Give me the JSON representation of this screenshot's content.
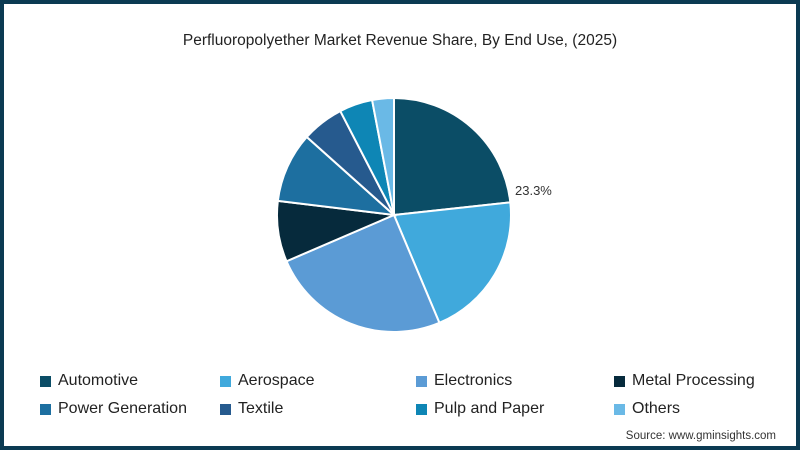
{
  "chart_data": {
    "type": "pie",
    "title": "Perfluoropolyether Market Revenue Share, By End Use, (2025)",
    "categories": [
      "Automotive",
      "Aerospace",
      "Electronics",
      "Metal Processing",
      "Power Generation",
      "Textile",
      "Pulp and Paper",
      "Others"
    ],
    "values": [
      23.3,
      20.4,
      24.9,
      8.4,
      9.7,
      5.8,
      4.6,
      3.0
    ],
    "colors": [
      "#0b4d66",
      "#40a9dc",
      "#5b9bd5",
      "#062a3c",
      "#1d6fa0",
      "#265a8e",
      "#0e86b5",
      "#6ab9e6"
    ],
    "labeled_slices": [
      {
        "category": "Automotive",
        "label": "23.3%"
      }
    ],
    "start_angle": 0,
    "direction": "clockwise",
    "legend_position": "bottom"
  },
  "title": "Perfluoropolyether Market Revenue Share, By End Use, (2025)",
  "data_label": "23.3%",
  "legend": [
    {
      "label": "Automotive",
      "color": "#0b4d66"
    },
    {
      "label": "Aerospace",
      "color": "#40a9dc"
    },
    {
      "label": "Electronics",
      "color": "#5b9bd5"
    },
    {
      "label": "Metal Processing",
      "color": "#062a3c"
    },
    {
      "label": "Power Generation",
      "color": "#1d6fa0"
    },
    {
      "label": "Textile",
      "color": "#265a8e"
    },
    {
      "label": "Pulp and Paper",
      "color": "#0e86b5"
    },
    {
      "label": "Others",
      "color": "#6ab9e6"
    }
  ],
  "source": "Source: www.gminsights.com"
}
